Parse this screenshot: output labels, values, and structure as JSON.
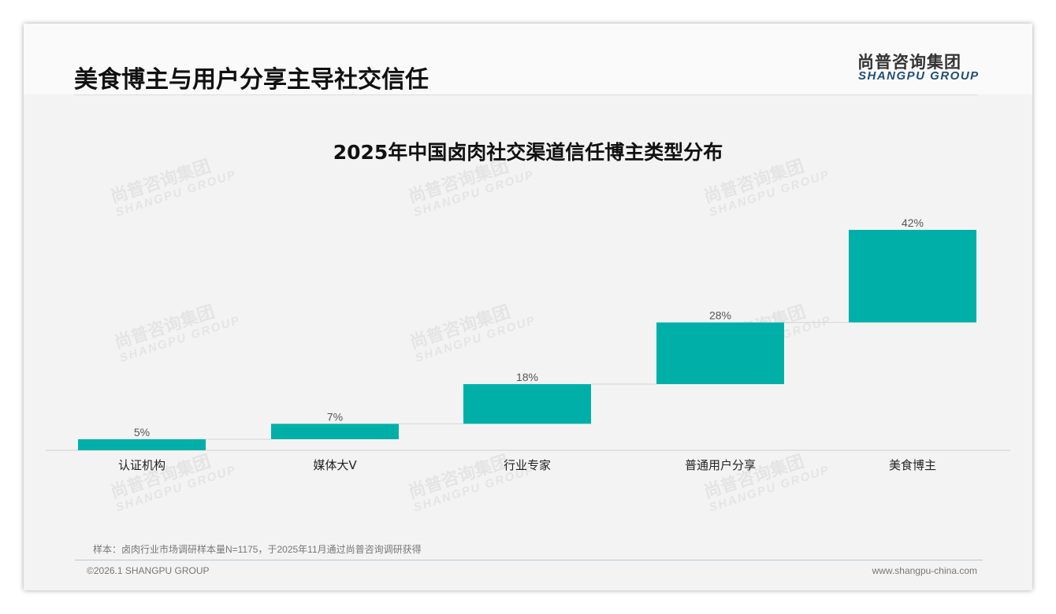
{
  "header": {
    "title": "美食博主与用户分享主导社交信任",
    "logo_cn": "尚普咨询集团",
    "logo_en": "SHANGPU GROUP"
  },
  "watermark": {
    "cn": "尚普咨询集团",
    "en": "SHANGPU GROUP"
  },
  "chart_data": {
    "type": "waterfall",
    "title": "2025年中国卤肉社交渠道信任博主类型分布",
    "categories": [
      "认证机构",
      "媒体大V",
      "行业专家",
      "普通用户分享",
      "美食博主"
    ],
    "values": [
      5,
      7,
      18,
      28,
      42
    ],
    "labels": [
      "5%",
      "7%",
      "18%",
      "28%",
      "42%"
    ],
    "unit": "%",
    "ylim": [
      0,
      100
    ],
    "color": "#00b0a8",
    "grid": false,
    "legend": "none"
  },
  "footer": {
    "note": "样本：卤肉行业市场调研样本量N=1175，于2025年11月通过尚普咨询调研获得",
    "copyright": "©2026.1 SHANGPU GROUP",
    "url": "www.shangpu-china.com"
  }
}
